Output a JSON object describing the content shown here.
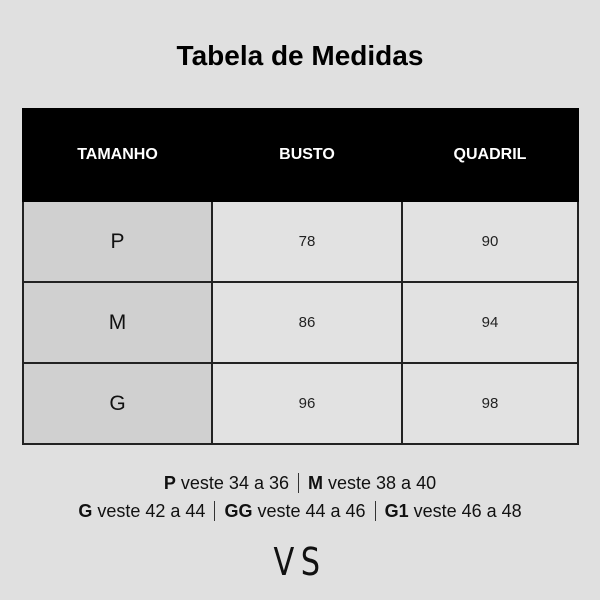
{
  "title": "Tabela de Medidas",
  "table": {
    "headers": [
      "TAMANHO",
      "BUSTO",
      "QUADRIL"
    ],
    "rows": [
      [
        "P",
        "78",
        "90"
      ],
      [
        "M",
        "86",
        "94"
      ],
      [
        "G",
        "96",
        "98"
      ]
    ]
  },
  "notes": [
    [
      {
        "size": "P",
        "text": "veste 34 a 36"
      },
      {
        "size": "M",
        "text": "veste 38 a 40"
      }
    ],
    [
      {
        "size": "G",
        "text": "veste 42 a 44"
      },
      {
        "size": "GG",
        "text": "veste 44 a 46"
      },
      {
        "size": "G1",
        "text": "veste 46 a 48"
      }
    ]
  ],
  "logo": "VS"
}
